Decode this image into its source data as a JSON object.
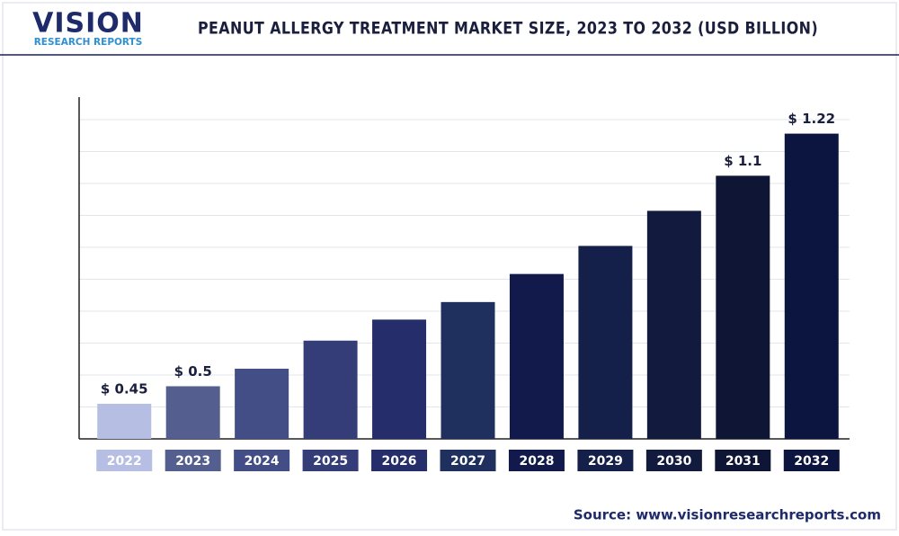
{
  "logo": {
    "name": "VISION",
    "tagline": "RESEARCH REPORTS"
  },
  "source": "Source: www.visionresearchreports.com",
  "chart_data": {
    "type": "bar",
    "title": "PEANUT ALLERGY TREATMENT MARKET SIZE, 2023 TO 2032 (USD BILLION)",
    "categories": [
      "2022",
      "2023",
      "2024",
      "2025",
      "2026",
      "2027",
      "2028",
      "2029",
      "2030",
      "2031",
      "2032"
    ],
    "values": [
      0.45,
      0.5,
      0.55,
      0.63,
      0.69,
      0.74,
      0.82,
      0.9,
      1.0,
      1.1,
      1.22
    ],
    "value_labels": [
      "$ 0.45",
      "$ 0.5",
      null,
      null,
      null,
      null,
      null,
      null,
      null,
      "$ 1.1",
      "$ 1.22"
    ],
    "colors": [
      "#b6bfe3",
      "#555f8f",
      "#434d86",
      "#343d78",
      "#262d6b",
      "#1f305e",
      "#111a4a",
      "#14204a",
      "#121a3d",
      "#0f1535",
      "#0c1440"
    ],
    "ylim": [
      0.35,
      1.26
    ],
    "grid": true
  }
}
